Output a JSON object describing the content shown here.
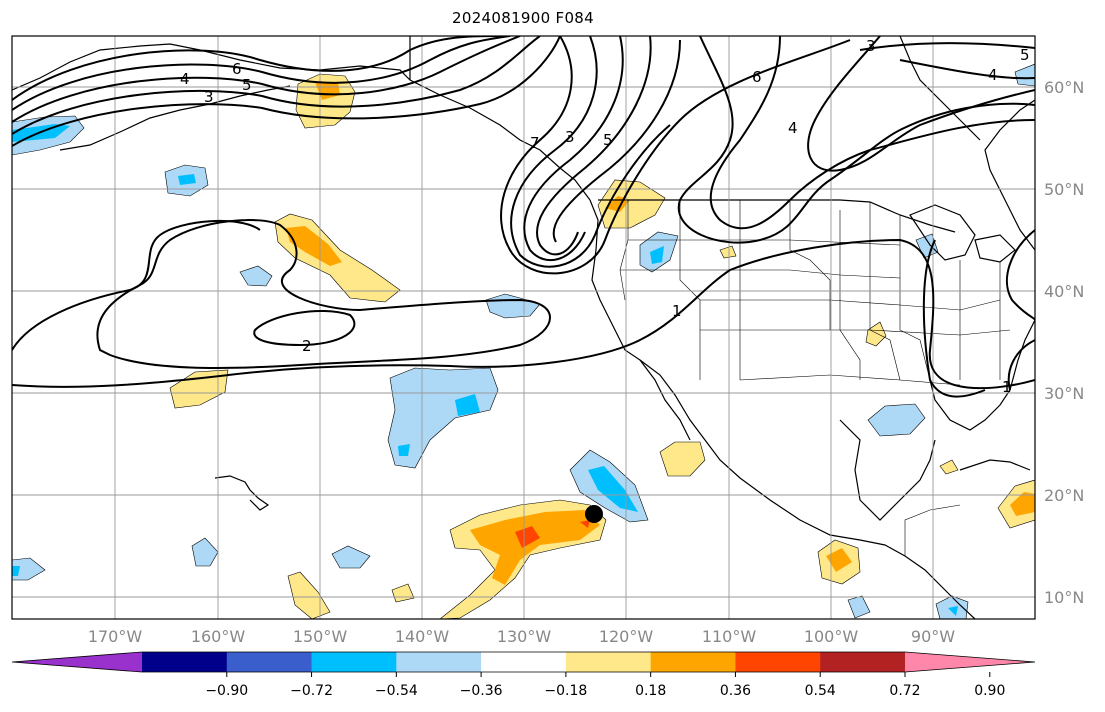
{
  "title": "2024081900 F084",
  "map": {
    "projection": "PlateCarree",
    "lon_range": [
      -180,
      -80
    ],
    "lat_range": [
      8,
      65
    ],
    "lon_ticks": [
      {
        "lon": -170,
        "label": "170°W"
      },
      {
        "lon": -160,
        "label": "160°W"
      },
      {
        "lon": -150,
        "label": "150°W"
      },
      {
        "lon": -140,
        "label": "140°W"
      },
      {
        "lon": -130,
        "label": "130°W"
      },
      {
        "lon": -120,
        "label": "120°W"
      },
      {
        "lon": -110,
        "label": "110°W"
      },
      {
        "lon": -100,
        "label": "100°W"
      },
      {
        "lon": -90,
        "label": "90°W"
      }
    ],
    "lat_ticks": [
      {
        "lat": 60,
        "label": "60°N"
      },
      {
        "lat": 50,
        "label": "50°N"
      },
      {
        "lat": 40,
        "label": "40°N"
      },
      {
        "lat": 30,
        "label": "30°N"
      },
      {
        "lat": 20,
        "label": "20°N"
      },
      {
        "lat": 10,
        "label": "10°N"
      }
    ],
    "contour_labels": [
      "6",
      "5",
      "4",
      "3",
      "1",
      "2",
      "7",
      "3",
      "5",
      "6",
      "4",
      "3",
      "4",
      "5",
      "1"
    ],
    "marker": {
      "lon": -123,
      "lat": 18,
      "symbol": "filled-circle",
      "color": "#000000"
    }
  },
  "colorbar": {
    "ticks": [
      "−0.90",
      "−0.72",
      "−0.54",
      "−0.36",
      "−0.18",
      "0.18",
      "0.36",
      "0.54",
      "0.72",
      "0.90"
    ],
    "colors": [
      "#9932cc",
      "#00008b",
      "#3a5fcd",
      "#00bfff",
      "#add8f6",
      "#ffffff",
      "#ffe88a",
      "#ffa500",
      "#ff4500",
      "#b22222",
      "#ff88aa"
    ],
    "extend": "both"
  }
}
